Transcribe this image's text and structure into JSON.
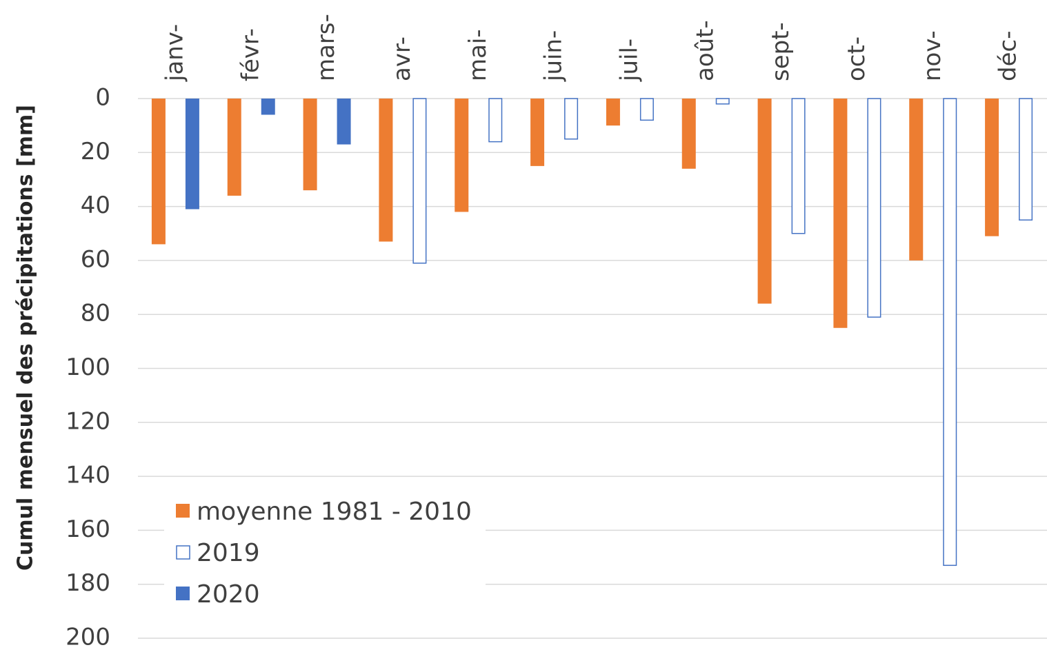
{
  "chart_data": {
    "type": "bar",
    "y_label": "Cumul mensuel des précipitations [mm]",
    "categories": [
      "janv-",
      "févr-",
      "mars-",
      "avr-",
      "mai-",
      "juin-",
      "juil-",
      "août-",
      "sept-",
      "oct-",
      "nov-",
      "déc-"
    ],
    "series": [
      {
        "name": "moyenne 1981 - 2010",
        "color": "#ed7d31",
        "hollow": false,
        "values": [
          54,
          36,
          34,
          53,
          42,
          25,
          10,
          26,
          76,
          85,
          60,
          51
        ]
      },
      {
        "name": "2019",
        "color": "#4472c4",
        "hollow": true,
        "values": [
          null,
          null,
          null,
          61,
          16,
          15,
          8,
          2,
          50,
          81,
          173,
          45
        ]
      },
      {
        "name": "2020",
        "color": "#4472c4",
        "hollow": false,
        "values": [
          41,
          6,
          17,
          null,
          null,
          null,
          null,
          null,
          null,
          null,
          null,
          null
        ]
      }
    ],
    "ylim": [
      0,
      200
    ],
    "y_inverted": true,
    "yticks": [
      0,
      20,
      40,
      60,
      80,
      100,
      120,
      140,
      160,
      180,
      200
    ],
    "grid": true,
    "legend": "lower-left"
  }
}
